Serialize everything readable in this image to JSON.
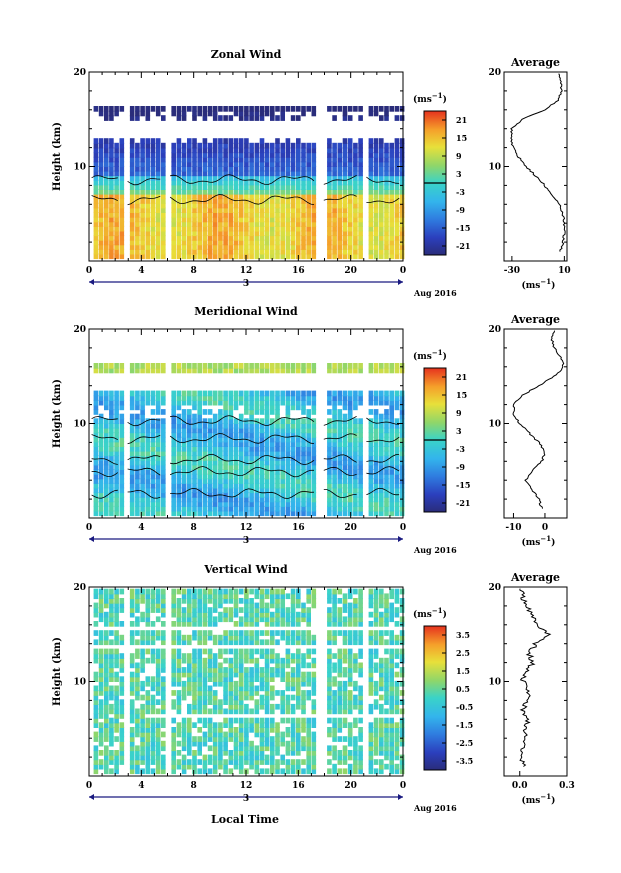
{
  "figure": {
    "xlabel": "Local Time"
  },
  "chart_data": [
    {
      "type": "heatmap",
      "title": "Zonal Wind",
      "ylabel": "Height (km)",
      "ylim": [
        0,
        20
      ],
      "xlim": [
        0,
        24
      ],
      "x_ticks": [
        "0",
        "4",
        "8",
        "12",
        "16",
        "20",
        "0"
      ],
      "y_ticks": [
        "20",
        "10"
      ],
      "date_ticks": [
        "3"
      ],
      "date_label": "Aug 2016",
      "colorbar": {
        "unit": "(ms",
        "exp": "−1",
        "ticks": [
          "21",
          "15",
          "9",
          "3",
          "-3",
          "-9",
          "-15",
          "-21"
        ],
        "range": [
          -24,
          24
        ],
        "contour_at": 0
      },
      "profile": {
        "title": "Average",
        "xlim": [
          -36,
          12
        ],
        "x_ticks": [
          "-30",
          "10"
        ],
        "x_tick_values": [
          -30,
          10
        ],
        "y_ticks": [
          "20",
          "10"
        ],
        "xlabel": "(ms",
        "xlabel_exp": "−1",
        "heights": [
          1,
          2,
          3,
          4,
          5,
          6,
          7,
          8,
          9,
          10,
          11,
          12,
          13,
          14,
          15,
          16,
          17,
          18,
          19,
          20
        ],
        "values": [
          7,
          9,
          10,
          10,
          9,
          6,
          1,
          -5,
          -12,
          -19,
          -25,
          -29,
          -31,
          -30,
          -22,
          -5,
          5,
          8,
          7,
          6
        ]
      }
    },
    {
      "type": "heatmap",
      "title": "Meridional Wind",
      "ylabel": "Height (km)",
      "ylim": [
        0,
        20
      ],
      "xlim": [
        0,
        24
      ],
      "x_ticks": [
        "0",
        "4",
        "8",
        "12",
        "16",
        "20",
        "0"
      ],
      "y_ticks": [
        "20",
        "10"
      ],
      "date_ticks": [
        "3"
      ],
      "date_label": "Aug 2016",
      "colorbar": {
        "unit": "(ms",
        "exp": "−1",
        "ticks": [
          "21",
          "15",
          "9",
          "3",
          "-3",
          "-9",
          "-15",
          "-21"
        ],
        "range": [
          -24,
          24
        ],
        "contour_at": 0
      },
      "profile": {
        "title": "Average",
        "xlim": [
          -13,
          7
        ],
        "x_ticks": [
          "-10",
          "0"
        ],
        "x_tick_values": [
          -10,
          0
        ],
        "y_ticks": [
          "20",
          "10"
        ],
        "xlabel": "(ms",
        "xlabel_exp": "−1",
        "heights": [
          1,
          2,
          3,
          4,
          5,
          6,
          7,
          8,
          9,
          10,
          11,
          12,
          13,
          14,
          15,
          16,
          17,
          18,
          19,
          20
        ],
        "values": [
          -1,
          -2,
          -4,
          -6,
          -4,
          -1,
          0,
          -2,
          -5,
          -8,
          -10,
          -10,
          -7,
          -2,
          3,
          6,
          5,
          3,
          2,
          3
        ]
      }
    },
    {
      "type": "heatmap",
      "title": "Vertical Wind",
      "ylabel": "Height (km)",
      "ylim": [
        0,
        20
      ],
      "xlim": [
        0,
        24
      ],
      "x_ticks": [
        "0",
        "4",
        "8",
        "12",
        "16",
        "20",
        "0"
      ],
      "y_ticks": [
        "20",
        "10"
      ],
      "date_ticks": [
        "3"
      ],
      "date_label": "Aug 2016",
      "colorbar": {
        "unit": "(ms",
        "exp": "−1",
        "ticks": [
          "3.5",
          "2.5",
          "1.5",
          "0.5",
          "-0.5",
          "-1.5",
          "-2.5",
          "-3.5"
        ],
        "range": [
          -4,
          4
        ]
      },
      "profile": {
        "title": "Average",
        "xlim": [
          -0.1,
          0.3
        ],
        "x_ticks": [
          "0.0",
          "0.3"
        ],
        "x_tick_values": [
          0.0,
          0.3
        ],
        "y_ticks": [
          "20",
          "10"
        ],
        "xlabel": "(ms",
        "xlabel_exp": "−1",
        "heights": [
          1,
          2,
          3,
          4,
          5,
          6,
          7,
          8,
          9,
          10,
          11,
          12,
          13,
          14,
          15,
          16,
          17,
          18,
          19,
          20
        ],
        "values": [
          0.03,
          0.0,
          0.02,
          0.04,
          0.03,
          0.05,
          0.02,
          0.04,
          0.06,
          0.02,
          0.04,
          0.08,
          0.06,
          0.1,
          0.18,
          0.12,
          0.08,
          0.04,
          0.02,
          0.0
        ]
      }
    }
  ]
}
